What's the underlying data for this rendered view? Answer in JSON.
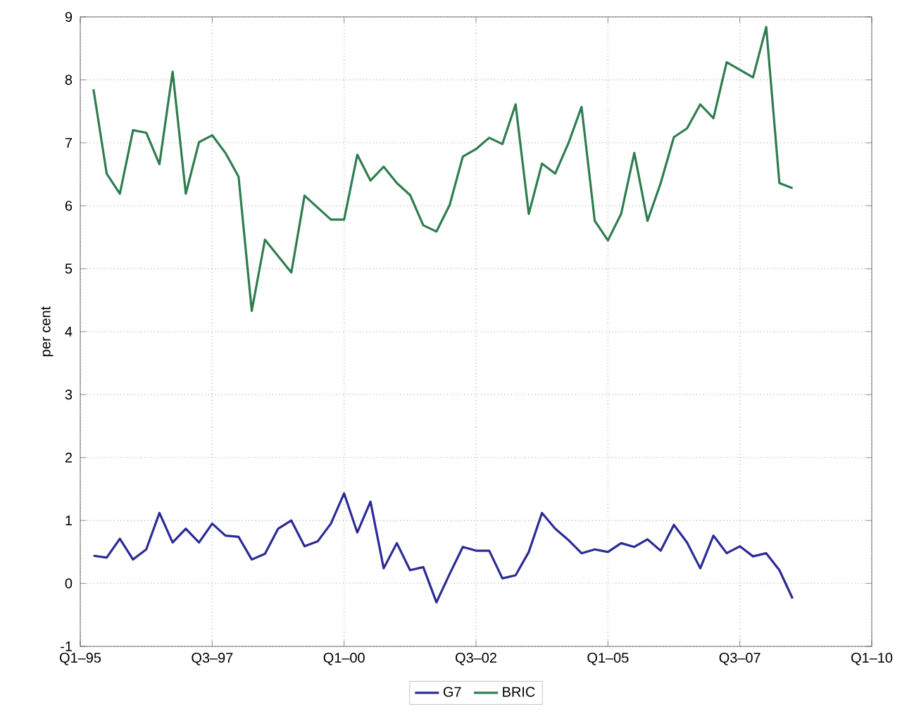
{
  "chart_data": {
    "type": "line",
    "ylabel": "per cent",
    "categories": [
      "Q1–95",
      null,
      null,
      null,
      null,
      null,
      null,
      null,
      null,
      null,
      "Q3–97",
      null,
      null,
      null,
      null,
      null,
      null,
      null,
      null,
      null,
      "Q1–00",
      null,
      null,
      null,
      null,
      null,
      null,
      null,
      null,
      null,
      "Q3–02",
      null,
      null,
      null,
      null,
      null,
      null,
      null,
      null,
      null,
      "Q1–05",
      null,
      null,
      null,
      null,
      null,
      null,
      null,
      null,
      null,
      "Q3–07",
      null,
      null,
      null,
      null,
      null,
      null,
      null,
      null,
      null,
      "Q1–10"
    ],
    "series": [
      {
        "name": "G7",
        "color": "#2b2b96",
        "values": [
          null,
          0.44,
          0.41,
          0.71,
          0.38,
          0.54,
          1.12,
          0.65,
          0.87,
          0.65,
          0.95,
          0.76,
          0.74,
          0.38,
          0.47,
          0.87,
          1.0,
          0.59,
          0.67,
          0.95,
          1.43,
          0.81,
          1.3,
          0.24,
          0.64,
          0.21,
          0.26,
          -0.3,
          0.15,
          0.58,
          0.52,
          0.52,
          0.08,
          0.13,
          0.5,
          1.12,
          0.87,
          0.69,
          0.48,
          0.54,
          0.5,
          0.64,
          0.58,
          0.7,
          0.52,
          0.93,
          0.65,
          0.24,
          0.76,
          0.48,
          0.59,
          0.43,
          0.48,
          0.21,
          -0.24,
          null,
          null,
          null,
          null,
          null,
          null
        ]
      },
      {
        "name": "BRIC",
        "color": "#2e7d4f",
        "values": [
          null,
          7.85,
          6.51,
          6.19,
          7.2,
          7.16,
          6.66,
          8.13,
          6.19,
          7.01,
          7.12,
          6.84,
          6.46,
          4.33,
          5.46,
          5.2,
          4.94,
          6.16,
          5.97,
          5.78,
          5.78,
          6.81,
          6.4,
          6.62,
          6.36,
          6.17,
          5.69,
          5.59,
          6.01,
          6.78,
          6.9,
          7.08,
          6.98,
          7.61,
          5.87,
          6.67,
          6.51,
          6.99,
          7.57,
          5.76,
          5.45,
          5.87,
          6.84,
          5.76,
          6.36,
          7.09,
          7.23,
          7.61,
          7.39,
          8.28,
          8.16,
          8.04,
          8.84,
          6.36,
          6.28,
          null,
          null,
          null,
          null,
          null,
          null
        ]
      }
    ],
    "ylim": [
      -1,
      9
    ],
    "yticks": [
      -1,
      0,
      1,
      2,
      3,
      4,
      5,
      6,
      7,
      8,
      9
    ],
    "grid": true,
    "legend": "bottom",
    "line_style": "solid",
    "marker": "none"
  }
}
